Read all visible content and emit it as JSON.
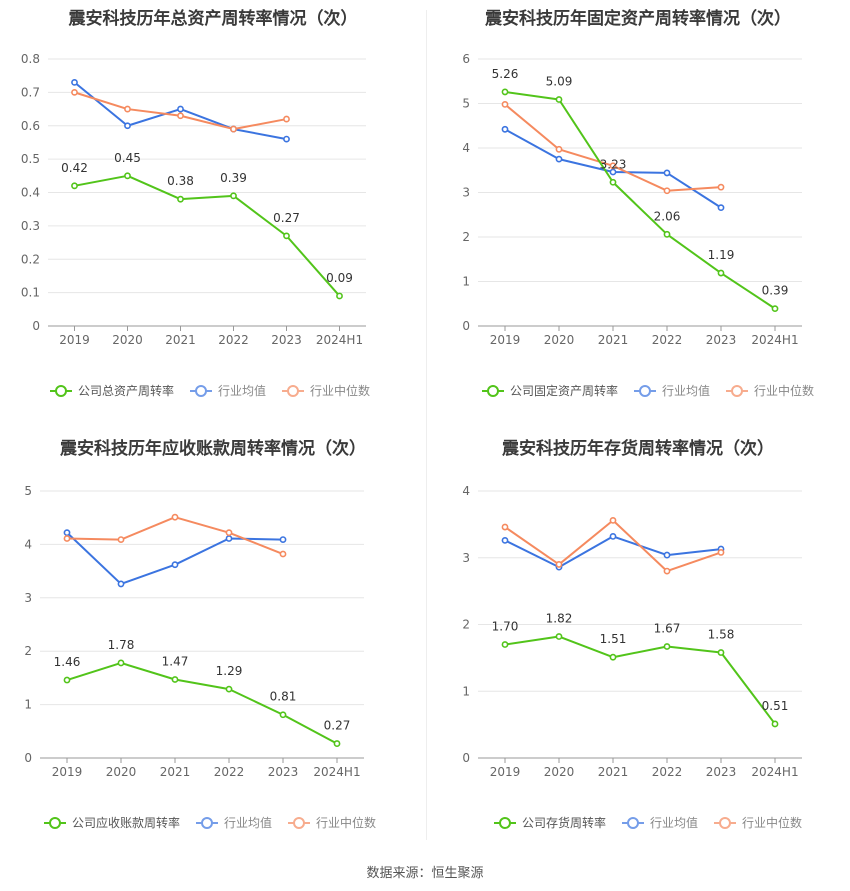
{
  "source_text": "数据来源：恒生聚源",
  "legend_labels": {
    "avg": "行业均值",
    "median": "行业中位数"
  },
  "colors": {
    "company": "#52c41a",
    "avg": "#3b74e0",
    "median": "#f58a5f",
    "grid": "#e6e6e6",
    "axis": "#666666"
  },
  "chart_data": [
    {
      "type": "line",
      "title": "震安科技历年总资产周转率情况（次）",
      "categories": [
        "2019",
        "2020",
        "2021",
        "2022",
        "2023",
        "2024H1"
      ],
      "ylim": [
        0,
        0.8
      ],
      "yticks": [
        "0",
        "0.1",
        "0.2",
        "0.3",
        "0.4",
        "0.5",
        "0.6",
        "0.7",
        "0.8"
      ],
      "series": [
        {
          "name": "公司总资产周转率",
          "role": "company",
          "values": [
            0.42,
            0.45,
            0.38,
            0.39,
            0.27,
            0.09
          ],
          "labels": [
            "0.42",
            "0.45",
            "0.38",
            "0.39",
            "0.27",
            "0.09"
          ]
        },
        {
          "name": "行业均值",
          "role": "avg",
          "values": [
            0.73,
            0.6,
            0.65,
            0.59,
            0.56,
            null
          ]
        },
        {
          "name": "行业中位数",
          "role": "median",
          "values": [
            0.7,
            0.65,
            0.63,
            0.59,
            0.62,
            null
          ]
        }
      ]
    },
    {
      "type": "line",
      "title": "震安科技历年固定资产周转率情况（次）",
      "categories": [
        "2019",
        "2020",
        "2021",
        "2022",
        "2023",
        "2024H1"
      ],
      "ylim": [
        0,
        6
      ],
      "yticks": [
        "0",
        "1",
        "2",
        "3",
        "4",
        "5",
        "6"
      ],
      "series": [
        {
          "name": "公司固定资产周转率",
          "role": "company",
          "values": [
            5.26,
            5.09,
            3.23,
            2.06,
            1.19,
            0.39
          ],
          "labels": [
            "5.26",
            "5.09",
            "3.23",
            "2.06",
            "1.19",
            "0.39"
          ]
        },
        {
          "name": "行业均值",
          "role": "avg",
          "values": [
            4.42,
            3.75,
            3.46,
            3.44,
            2.66,
            null
          ]
        },
        {
          "name": "行业中位数",
          "role": "median",
          "values": [
            4.98,
            3.97,
            3.6,
            3.04,
            3.12,
            null
          ]
        }
      ]
    },
    {
      "type": "line",
      "title": "震安科技历年应收账款周转率情况（次）",
      "categories": [
        "2019",
        "2020",
        "2021",
        "2022",
        "2023",
        "2024H1"
      ],
      "ylim": [
        0,
        5
      ],
      "yticks": [
        "0",
        "1",
        "2",
        "3",
        "4",
        "5"
      ],
      "series": [
        {
          "name": "公司应收账款周转率",
          "role": "company",
          "values": [
            1.46,
            1.78,
            1.47,
            1.29,
            0.81,
            0.27
          ],
          "labels": [
            "1.46",
            "1.78",
            "1.47",
            "1.29",
            "0.81",
            "0.27"
          ]
        },
        {
          "name": "行业均值",
          "role": "avg",
          "values": [
            4.22,
            3.26,
            3.62,
            4.11,
            4.09,
            null
          ]
        },
        {
          "name": "行业中位数",
          "role": "median",
          "values": [
            4.11,
            4.09,
            4.51,
            4.22,
            3.82,
            null
          ]
        }
      ]
    },
    {
      "type": "line",
      "title": "震安科技历年存货周转率情况（次）",
      "categories": [
        "2019",
        "2020",
        "2021",
        "2022",
        "2023",
        "2024H1"
      ],
      "ylim": [
        0,
        4
      ],
      "yticks": [
        "0",
        "1",
        "2",
        "3",
        "4"
      ],
      "series": [
        {
          "name": "公司存货周转率",
          "role": "company",
          "values": [
            1.7,
            1.82,
            1.51,
            1.67,
            1.58,
            0.51
          ],
          "labels": [
            "1.70",
            "1.82",
            "1.51",
            "1.67",
            "1.58",
            "0.51"
          ]
        },
        {
          "name": "行业均值",
          "role": "avg",
          "values": [
            3.26,
            2.86,
            3.32,
            3.04,
            3.13,
            null
          ]
        },
        {
          "name": "行业中位数",
          "role": "median",
          "values": [
            3.46,
            2.9,
            3.56,
            2.8,
            3.08,
            null
          ]
        }
      ]
    }
  ]
}
